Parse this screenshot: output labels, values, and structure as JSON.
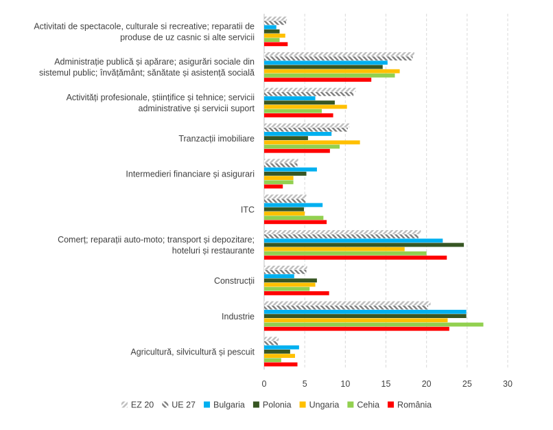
{
  "chart_data": {
    "type": "bar",
    "orientation": "horizontal",
    "categories": [
      [
        "Activitati de spectacole, culturale si recreative; reparatii de",
        "produse de uz casnic si alte servicii"
      ],
      [
        "Administrație publică și apărare; asigurări sociale din",
        "sistemul public; învățământ; sănătate și asistență socială"
      ],
      [
        "Activități profesionale, științifice și tehnice; servicii",
        "administrative și servicii suport"
      ],
      [
        "Tranzacții imobiliare"
      ],
      [
        "Intermedieri financiare și asigurari"
      ],
      [
        "ITC"
      ],
      [
        "Comerț; reparații auto-moto; transport și depozitare;",
        "hoteluri și restaurante"
      ],
      [
        "Construcții"
      ],
      [
        "Industrie"
      ],
      [
        "Agricultură, silvicultură și pescuit"
      ]
    ],
    "series": [
      {
        "name": "EZ 20",
        "color": "#bfbfbf",
        "pattern": "hatch-light",
        "values": [
          2.8,
          18.5,
          11.3,
          10.5,
          4.2,
          5.2,
          19.3,
          5.3,
          20.5,
          1.8
        ]
      },
      {
        "name": "UE 27",
        "color": "#808080",
        "pattern": "hatch-dark",
        "values": [
          2.7,
          18.3,
          11.0,
          10.3,
          4.1,
          5.1,
          19.0,
          5.2,
          20.2,
          1.7
        ]
      },
      {
        "name": "Bulgaria",
        "color": "#00b0f0",
        "pattern": "solid",
        "values": [
          1.5,
          15.2,
          6.3,
          8.3,
          6.5,
          7.2,
          22.0,
          3.7,
          24.9,
          4.3
        ]
      },
      {
        "name": "Polonia",
        "color": "#375623",
        "pattern": "solid",
        "values": [
          1.9,
          14.6,
          8.7,
          5.4,
          5.2,
          4.9,
          24.6,
          6.5,
          24.9,
          3.2
        ]
      },
      {
        "name": "Ungaria",
        "color": "#ffc000",
        "pattern": "solid",
        "values": [
          2.6,
          16.7,
          10.2,
          11.8,
          3.6,
          5.0,
          17.3,
          6.3,
          22.6,
          3.8
        ]
      },
      {
        "name": "Cehia",
        "color": "#92d050",
        "pattern": "solid",
        "values": [
          1.9,
          16.1,
          7.1,
          9.3,
          3.6,
          7.3,
          20.0,
          5.6,
          27.0,
          2.1
        ]
      },
      {
        "name": "România",
        "color": "#ff0000",
        "pattern": "solid",
        "values": [
          2.9,
          13.2,
          8.5,
          8.1,
          2.3,
          7.7,
          22.5,
          8.0,
          22.8,
          4.1
        ]
      }
    ],
    "xlim": [
      0,
      30
    ],
    "xticks": [
      "0",
      "5",
      "10",
      "15",
      "20",
      "25",
      "30"
    ],
    "grid": "vertical dashed",
    "legend_position": "bottom",
    "title": "",
    "xlabel": "",
    "ylabel": ""
  }
}
